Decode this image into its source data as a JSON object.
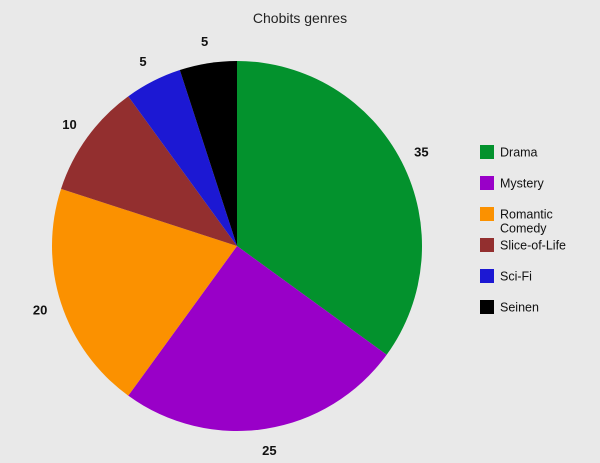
{
  "chart_data": {
    "type": "pie",
    "title": "Chobits genres",
    "categories": [
      "Drama",
      "Mystery",
      "Romantic Comedy",
      "Slice-of-Life",
      "Sci-Fi",
      "Seinen"
    ],
    "values": [
      35,
      25,
      20,
      10,
      5,
      5
    ],
    "colors": [
      "#03922d",
      "#9900c8",
      "#fb9100",
      "#932f2f",
      "#1c18d3",
      "#000000"
    ],
    "legend_labels": [
      [
        "Drama"
      ],
      [
        "Mystery"
      ],
      [
        "Romantic",
        "Comedy"
      ],
      [
        "Slice-of-Life"
      ],
      [
        "Sci-Fi"
      ],
      [
        "Seinen"
      ]
    ],
    "data_labels": [
      "35",
      "25",
      "20",
      "10",
      "5",
      "5"
    ],
    "legend_position": "right",
    "start_angle": "12 o'clock",
    "direction": "clockwise"
  }
}
